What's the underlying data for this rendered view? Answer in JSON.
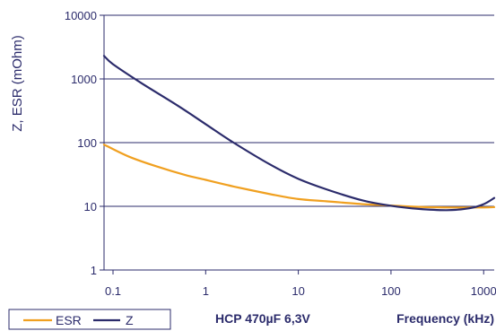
{
  "chart_data": {
    "type": "line",
    "title": "",
    "ylabel": "Z, ESR (mOhm)",
    "xlabel": "Frequency (kHz)",
    "annotation": "HCP 470µF 6,3V",
    "x_scale": "log",
    "y_scale": "log",
    "xlim": [
      0.08,
      1300
    ],
    "ylim": [
      1,
      10000
    ],
    "x_ticks": [
      0.1,
      1,
      10,
      100,
      1000
    ],
    "x_tick_labels": [
      "0.1",
      "1",
      "10",
      "100",
      "1000"
    ],
    "y_ticks": [
      1,
      10,
      100,
      1000,
      10000
    ],
    "y_tick_labels": [
      "1",
      "10",
      "100",
      "1000",
      "10000"
    ],
    "grid": "horizontal",
    "legend_position": "bottom-left",
    "series": [
      {
        "name": "ESR",
        "color": "#f0a020",
        "x": [
          0.08,
          0.15,
          0.3,
          0.6,
          1,
          2,
          5,
          10,
          20,
          50,
          100,
          200,
          500,
          1000,
          1300
        ],
        "y": [
          93,
          60,
          42,
          31,
          26,
          20.5,
          15.5,
          13,
          12,
          10.8,
          10.3,
          9.8,
          9.6,
          9.6,
          9.7
        ]
      },
      {
        "name": "Z",
        "color": "#2b2b6b",
        "x": [
          0.08,
          0.1,
          0.2,
          0.5,
          1,
          2,
          5,
          10,
          20,
          50,
          100,
          200,
          400,
          700,
          1000,
          1300
        ],
        "y": [
          2300,
          1700,
          870,
          380,
          195,
          100,
          45,
          27,
          18.5,
          12.3,
          10.2,
          9.1,
          8.7,
          9.3,
          10.8,
          13.5
        ]
      }
    ]
  }
}
